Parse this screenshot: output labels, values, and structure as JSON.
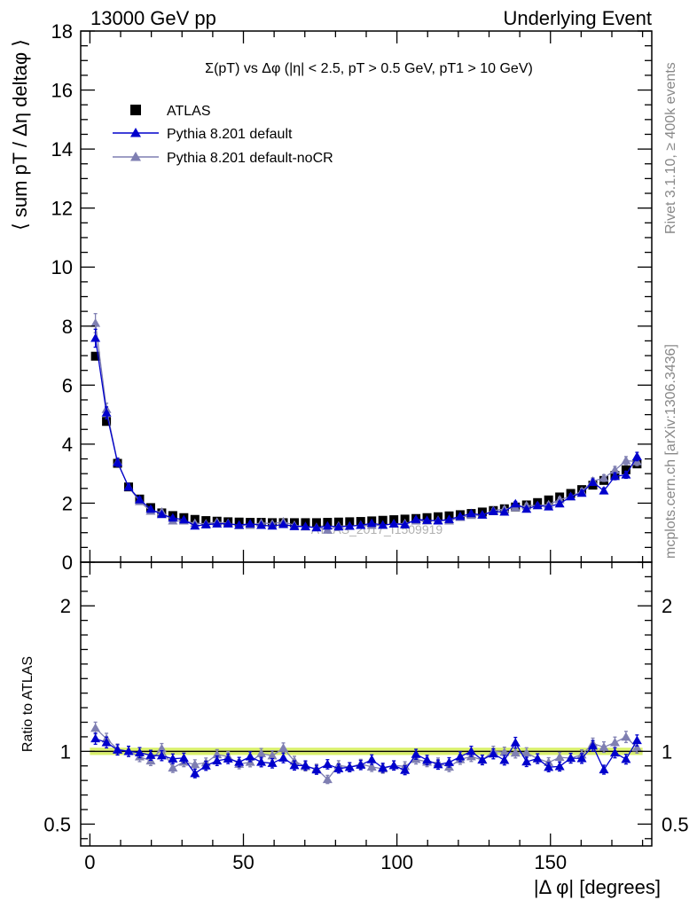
{
  "header": {
    "left": "13000 GeV pp",
    "right": "Underlying Event"
  },
  "side": {
    "rivet": "Rivet 3.1.10, ≥ 400k events",
    "mcplots": "mcplots.cern.ch [arXiv:1306.3436]"
  },
  "watermark": "ATLAS_2017_I1509919",
  "colors": {
    "atlas": "#000000",
    "default": "#0000cc",
    "nocr": "#7f7fb2",
    "band_outer": "#d8f06a",
    "band_inner": "#f0ff88"
  },
  "chart_data": [
    {
      "type": "scatter",
      "title": "Σ(pT) vs Δφ (|η| < 2.5, pT > 0.5 GeV, pT1 > 10 GeV)",
      "ylabel": "⟨ sum pT / Δη deltaφ ⟩",
      "xlim": [
        -3,
        183
      ],
      "ylim": [
        0,
        18
      ],
      "yticks": [
        "0",
        "2",
        "4",
        "6",
        "8",
        "10",
        "12",
        "14",
        "16",
        "18"
      ],
      "legend": [
        "ATLAS",
        "Pythia 8.201 default",
        "Pythia 8.201 default-noCR"
      ],
      "legend_position": "top-left",
      "x": [
        1.8,
        5.4,
        9.0,
        12.6,
        16.2,
        19.8,
        23.4,
        27.0,
        30.6,
        34.2,
        37.8,
        41.4,
        45.0,
        48.6,
        52.2,
        55.8,
        59.4,
        63.0,
        66.6,
        70.2,
        73.8,
        77.4,
        81.0,
        84.6,
        88.2,
        91.8,
        95.4,
        99.0,
        102.6,
        106.2,
        109.8,
        113.4,
        117.0,
        120.6,
        124.2,
        127.8,
        131.4,
        135.0,
        138.6,
        142.2,
        145.8,
        149.4,
        153.0,
        156.6,
        160.2,
        163.8,
        167.4,
        171.0,
        174.6,
        178.2
      ],
      "series": [
        {
          "name": "ATLAS",
          "values": [
            6.98,
            4.77,
            3.35,
            2.55,
            2.14,
            1.85,
            1.67,
            1.58,
            1.51,
            1.45,
            1.41,
            1.39,
            1.37,
            1.36,
            1.35,
            1.35,
            1.34,
            1.34,
            1.34,
            1.34,
            1.34,
            1.35,
            1.36,
            1.37,
            1.38,
            1.4,
            1.42,
            1.44,
            1.46,
            1.48,
            1.51,
            1.54,
            1.57,
            1.61,
            1.65,
            1.7,
            1.75,
            1.81,
            1.87,
            1.94,
            2.02,
            2.11,
            2.21,
            2.33,
            2.46,
            2.61,
            2.77,
            2.94,
            3.13,
            3.33
          ]
        },
        {
          "name": "Pythia 8.201 default",
          "values": [
            7.59,
            5.06,
            3.38,
            2.55,
            2.12,
            1.8,
            1.62,
            1.5,
            1.44,
            1.23,
            1.27,
            1.3,
            1.3,
            1.26,
            1.3,
            1.25,
            1.23,
            1.28,
            1.21,
            1.21,
            1.17,
            1.23,
            1.2,
            1.22,
            1.25,
            1.32,
            1.26,
            1.3,
            1.27,
            1.45,
            1.42,
            1.4,
            1.45,
            1.55,
            1.65,
            1.6,
            1.72,
            1.7,
            1.98,
            1.8,
            1.92,
            1.88,
            1.98,
            2.22,
            2.34,
            2.71,
            2.42,
            2.91,
            2.96,
            3.58
          ]
        },
        {
          "name": "Pythia 8.201 default-noCR",
          "values": [
            8.1,
            5.18,
            3.4,
            2.55,
            2.06,
            1.73,
            1.7,
            1.4,
            1.4,
            1.32,
            1.3,
            1.36,
            1.32,
            1.24,
            1.25,
            1.33,
            1.3,
            1.37,
            1.25,
            1.2,
            1.18,
            1.09,
            1.23,
            1.22,
            1.26,
            1.25,
            1.25,
            1.3,
            1.31,
            1.4,
            1.4,
            1.42,
            1.4,
            1.52,
            1.59,
            1.6,
            1.75,
            1.8,
            1.85,
            1.92,
            1.92,
            1.95,
            2.12,
            2.22,
            2.4,
            2.75,
            2.85,
            3.12,
            3.44,
            3.41
          ]
        }
      ]
    },
    {
      "type": "scatter",
      "ylabel": "Ratio to ATLAS",
      "xlabel": "|Δ φ| [degrees]",
      "xlim": [
        -3,
        183
      ],
      "ylim": [
        0.35,
        2.3
      ],
      "xticks": [
        "0",
        "50",
        "100",
        "150"
      ],
      "yticks": [
        "0.5",
        "1",
        "2"
      ],
      "reference": 1.0,
      "series": [
        {
          "name": "Pythia 8.201 default",
          "values": [
            1.087,
            1.061,
            1.01,
            1.0,
            0.991,
            0.973,
            0.97,
            0.949,
            0.954,
            0.848,
            0.901,
            0.935,
            0.949,
            0.926,
            0.963,
            0.926,
            0.918,
            0.955,
            0.903,
            0.903,
            0.873,
            0.911,
            0.882,
            0.891,
            0.906,
            0.943,
            0.887,
            0.903,
            0.87,
            0.98,
            0.94,
            0.909,
            0.924,
            0.963,
            1.0,
            0.941,
            0.983,
            0.939,
            1.059,
            0.928,
            0.95,
            0.891,
            0.896,
            0.953,
            0.951,
            1.038,
            0.874,
            0.99,
            0.946,
            1.075
          ]
        },
        {
          "name": "Pythia 8.201 default-noCR",
          "values": [
            1.16,
            1.086,
            1.015,
            1.0,
            0.963,
            0.935,
            1.018,
            0.886,
            0.927,
            0.91,
            0.922,
            0.978,
            0.964,
            0.912,
            0.926,
            0.985,
            0.97,
            1.022,
            0.933,
            0.896,
            0.881,
            0.807,
            0.904,
            0.891,
            0.913,
            0.893,
            0.88,
            0.903,
            0.897,
            0.946,
            0.927,
            0.922,
            0.892,
            0.944,
            0.964,
            0.941,
            1.0,
            0.994,
            0.989,
            0.99,
            0.95,
            0.924,
            0.959,
            0.953,
            0.976,
            1.054,
            1.029,
            1.061,
            1.099,
            1.024
          ]
        }
      ]
    }
  ]
}
